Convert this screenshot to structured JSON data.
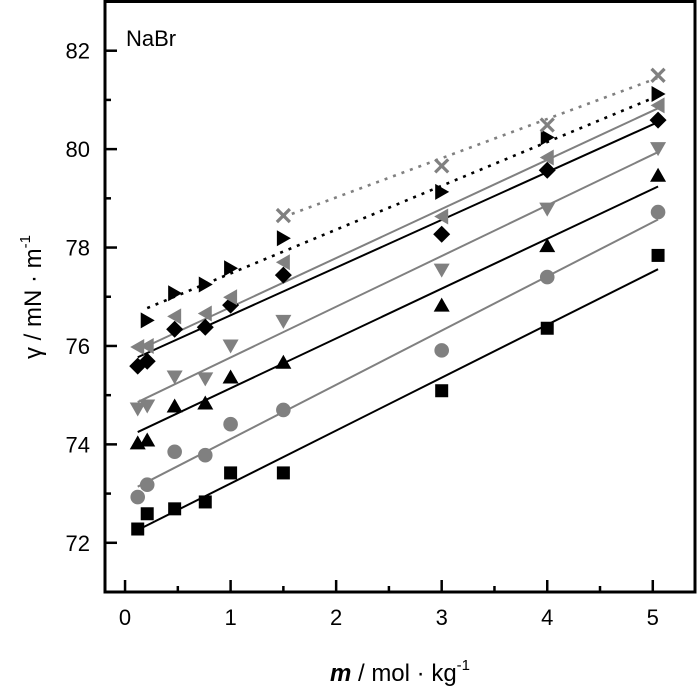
{
  "chart_data": {
    "type": "scatter",
    "title": "",
    "annotation": "NaBr",
    "xlabel": {
      "symbol": "m",
      "rest": " / mol · kg",
      "sup": "-1"
    },
    "ylabel": {
      "symbol": "γ",
      "rest": " / mN · m",
      "sup": "-1"
    },
    "xlim": [
      -0.19,
      5.4
    ],
    "ylim": [
      71.0,
      83.0
    ],
    "xticks": [
      0,
      1,
      2,
      3,
      4,
      5
    ],
    "xtick_labels": [
      "0",
      "1",
      "2",
      "3",
      "4",
      "5"
    ],
    "x_minor_ticks": [
      0.5,
      1.5,
      2.5,
      3.5,
      4.5
    ],
    "yticks": [
      72,
      74,
      76,
      78,
      80,
      82
    ],
    "ytick_labels": [
      "72",
      "74",
      "76",
      "78",
      "80",
      "82"
    ],
    "y_minor_ticks": [
      73,
      75,
      77,
      79,
      81
    ],
    "grid": false,
    "legend": "none",
    "series": [
      {
        "name": "series-1",
        "marker": "square",
        "color": "#000000",
        "x": [
          0.12,
          0.21,
          0.47,
          0.76,
          1.0,
          1.5,
          3.0,
          4.0,
          5.05
        ],
        "y": [
          72.28,
          72.59,
          72.69,
          72.83,
          73.42,
          73.42,
          75.09,
          76.36,
          77.84
        ],
        "fit": {
          "x": [
            0.12,
            5.05
          ],
          "y": [
            72.26,
            77.56
          ],
          "style": "solid"
        }
      },
      {
        "name": "series-2",
        "marker": "circle",
        "color": "#808080",
        "x": [
          0.12,
          0.21,
          0.47,
          0.76,
          1.0,
          1.5,
          3.0,
          4.0,
          5.05
        ],
        "y": [
          72.93,
          73.18,
          73.85,
          73.78,
          74.41,
          74.7,
          75.91,
          77.4,
          78.72
        ],
        "fit": {
          "x": [
            0.12,
            5.05
          ],
          "y": [
            73.14,
            78.57
          ],
          "style": "solid"
        }
      },
      {
        "name": "series-3",
        "marker": "triangle-up",
        "color": "#000000",
        "x": [
          0.12,
          0.21,
          0.47,
          0.76,
          1.0,
          1.5,
          3.0,
          4.0,
          5.05
        ],
        "y": [
          74.03,
          74.09,
          74.78,
          74.84,
          75.37,
          75.67,
          76.83,
          78.04,
          79.47
        ],
        "fit": {
          "x": [
            0.12,
            5.05
          ],
          "y": [
            74.25,
            79.24
          ],
          "style": "solid"
        }
      },
      {
        "name": "series-4",
        "marker": "triangle-down",
        "color": "#808080",
        "x": [
          0.12,
          0.21,
          0.47,
          0.76,
          1.0,
          1.5,
          3.0,
          4.0,
          5.05
        ],
        "y": [
          74.72,
          74.78,
          75.37,
          75.33,
          76.0,
          76.5,
          77.54,
          78.78,
          80.01
        ],
        "fit": {
          "x": [
            0.12,
            5.05
          ],
          "y": [
            74.86,
            79.94
          ],
          "style": "solid"
        }
      },
      {
        "name": "series-5",
        "marker": "diamond",
        "color": "#000000",
        "x": [
          0.12,
          0.21,
          0.47,
          0.76,
          1.0,
          1.5,
          3.0,
          4.0,
          5.05
        ],
        "y": [
          75.59,
          75.69,
          76.34,
          76.38,
          76.83,
          77.44,
          78.27,
          79.57,
          80.59
        ],
        "fit": {
          "x": [
            0.12,
            5.05
          ],
          "y": [
            75.77,
            80.55
          ],
          "style": "solid"
        }
      },
      {
        "name": "series-6",
        "marker": "triangle-left",
        "color": "#808080",
        "x": [
          0.12,
          0.21,
          0.47,
          0.76,
          1.0,
          1.5,
          3.0,
          4.0,
          5.05
        ],
        "y": [
          75.98,
          76.0,
          76.6,
          76.66,
          76.99,
          77.7,
          78.63,
          79.83,
          80.89
        ],
        "fit": {
          "x": [
            0.12,
            5.05
          ],
          "y": [
            75.91,
            80.83
          ],
          "style": "solid"
        }
      },
      {
        "name": "series-7",
        "marker": "triangle-right",
        "color": "#000000",
        "x": [
          0.21,
          0.47,
          0.76,
          1.0,
          1.5,
          3.0,
          4.0,
          5.05
        ],
        "y": [
          76.52,
          77.07,
          77.25,
          77.58,
          78.19,
          79.13,
          80.24,
          81.12
        ],
        "fit": {
          "x": [
            0.21,
            5.05
          ],
          "y": [
            76.77,
            81.08
          ],
          "style": "dotted"
        }
      },
      {
        "name": "series-8",
        "marker": "cross",
        "color": "#808080",
        "x": [
          1.5,
          3.0,
          4.0,
          5.05
        ],
        "y": [
          78.65,
          79.66,
          80.49,
          81.5
        ],
        "fit": {
          "x": [
            1.5,
            5.05
          ],
          "y": [
            78.62,
            81.45
          ],
          "style": "dotted"
        }
      }
    ]
  }
}
